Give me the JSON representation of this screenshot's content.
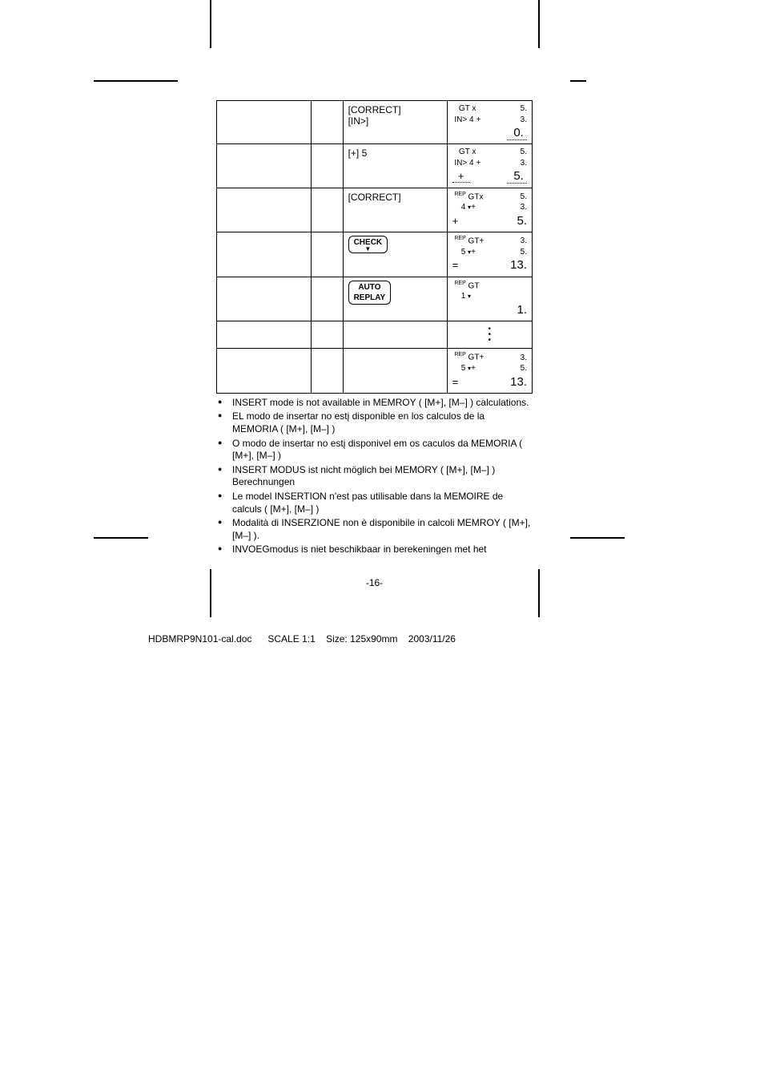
{
  "table": {
    "rows": [
      {
        "action_html": "[CORRECT]<br>[IN>]",
        "disp": [
          {
            "l": "   GT x",
            "r": "5.",
            "big": false
          },
          {
            "l": " IN> 4 +",
            "r": "3.",
            "big": false
          },
          {
            "l": "",
            "r": "<span class='dotted-under'>&nbsp;&nbsp;0.&nbsp;</span>",
            "big": true
          }
        ]
      },
      {
        "action_html": "[+] 5",
        "disp": [
          {
            "l": "   GT x",
            "r": "5.",
            "big": false
          },
          {
            "l": " IN> 4 +",
            "r": "3.",
            "big": false
          },
          {
            "l": "<span class='dotted-under'>&nbsp;&nbsp;+&nbsp;&nbsp;</span>",
            "r": "<span class='dotted-under'>&nbsp;&nbsp;5.&nbsp;</span>",
            "big": true
          }
        ]
      },
      {
        "action_html": "[CORRECT]",
        "disp": [
          {
            "l": " <span class='sup'>REP</span> GTx",
            "r": "5.",
            "big": false
          },
          {
            "l": "    4 <span class='triglyph'>▾</span>+",
            "r": "3.",
            "big": false
          },
          {
            "l": "+",
            "r": "5.",
            "big": true
          }
        ]
      },
      {
        "action_html": "<span class='btn-label btn-check'>CHECK<span class='arrow'>▼</span></span>",
        "disp": [
          {
            "l": " <span class='sup'>REP</span> GT+",
            "r": "3.",
            "big": false
          },
          {
            "l": "    5 <span class='triglyph'>▾</span>+",
            "r": "5.",
            "big": false
          },
          {
            "l": "=",
            "r": "13.",
            "big": true
          }
        ]
      },
      {
        "action_html": "<span class='btn-label'>AUTO<br>REPLAY</span>",
        "disp": [
          {
            "l": " <span class='sup'>REP</span> GT",
            "r": "",
            "big": false
          },
          {
            "l": "    1 <span class='triglyph'>▾</span>",
            "r": "",
            "big": false
          },
          {
            "l": "",
            "r": "1.",
            "big": true
          }
        ]
      },
      {
        "action_html": "",
        "dots": true
      },
      {
        "action_html": "",
        "disp": [
          {
            "l": " <span class='sup'>REP</span> GT+",
            "r": "3.",
            "big": false
          },
          {
            "l": "    5 <span class='triglyph'>▾</span>+",
            "r": "5.",
            "big": false
          },
          {
            "l": "=",
            "r": "13.",
            "big": true
          }
        ]
      }
    ]
  },
  "notes": [
    "INSERT mode is not available in MEMROY ( [M+], [M–] ) calculations.",
    "EL modo de insertar no estį disponible en los calculos de la MEMORIA ( [M+], [M–] )",
    "O modo de insertar no estį disponivel em os caculos da MEMORIA ( [M+], [M–] )",
    "INSERT MODUS ist nicht möglich bei MEMORY ( [M+], [M–] ) Berechnungen",
    "Le model INSERTION n'est pas utilisable dans la MEMOIRE de calculs ( [M+], [M–] )",
    "Modalità di INSERZIONE non è disponibile in calcoli MEMROY ( [M+], [M–] ).",
    "INVOEGmodus is niet beschikbaar in berekeningen met het"
  ],
  "pagenum": "-16-",
  "footer": "HDBMRP9N101-cal.doc      SCALE 1:1    Size: 125x90mm    2003/11/26"
}
